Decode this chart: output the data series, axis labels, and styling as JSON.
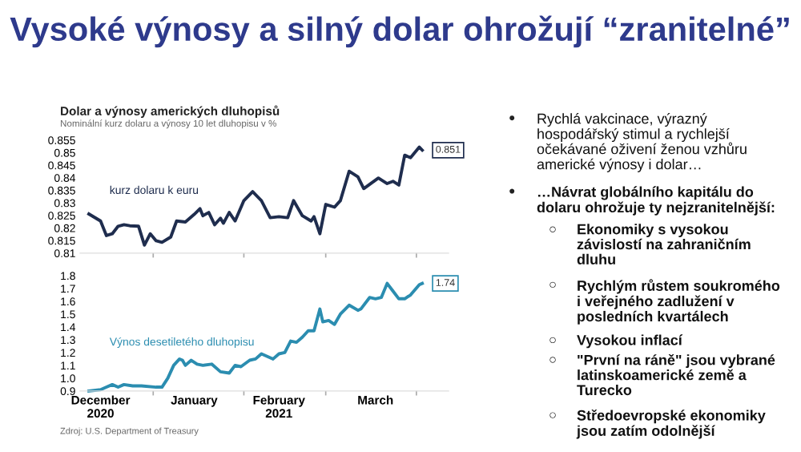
{
  "chart_data": [
    {
      "type": "line",
      "title": "Dolar a výnosy amerických dluhopisů",
      "subtitle": "Nominální kurz dolaru a výnosy 10 let dluhopisu v %",
      "tick_labels": "y",
      "grid": false,
      "legend": false,
      "xlim": [
        "2020-12-07",
        "2021-04-12"
      ],
      "xticks": [
        {
          "value": "2021-01-01",
          "label": null
        },
        {
          "value": "2021-02-01",
          "label": null
        },
        {
          "value": "2021-03-01",
          "label": null
        },
        {
          "value": "2021-04-01",
          "label": null
        }
      ],
      "ylim": [
        0.81,
        0.855
      ],
      "yticks": [
        0.81,
        0.815,
        0.82,
        0.825,
        0.83,
        0.835,
        0.84,
        0.845,
        0.85,
        0.855
      ],
      "series": [
        {
          "name": "kurz dolaru k euru",
          "color": "#1f2d4e",
          "x": [
            "2020-12-10",
            "2020-12-14",
            "2020-12-16",
            "2020-12-18",
            "2020-12-20",
            "2020-12-22",
            "2020-12-24",
            "2020-12-27",
            "2020-12-29",
            "2020-12-31",
            "2021-01-02",
            "2021-01-04",
            "2021-01-07",
            "2021-01-09",
            "2021-01-12",
            "2021-01-15",
            "2021-01-17",
            "2021-01-18",
            "2021-01-20",
            "2021-01-22",
            "2021-01-24",
            "2021-01-25",
            "2021-01-27",
            "2021-01-29",
            "2021-02-01",
            "2021-02-04",
            "2021-02-07",
            "2021-02-10",
            "2021-02-13",
            "2021-02-16",
            "2021-02-18",
            "2021-02-21",
            "2021-02-24",
            "2021-02-25",
            "2021-02-27",
            "2021-03-01",
            "2021-03-04",
            "2021-03-06",
            "2021-03-09",
            "2021-03-12",
            "2021-03-14",
            "2021-03-19",
            "2021-03-22",
            "2021-03-24",
            "2021-03-26",
            "2021-03-28",
            "2021-03-30",
            "2021-04-02",
            "2021-04-03"
          ],
          "values": [
            0.8256,
            0.8228,
            0.817,
            0.8177,
            0.8207,
            0.8213,
            0.8209,
            0.8207,
            0.8132,
            0.8177,
            0.8149,
            0.8143,
            0.8164,
            0.8228,
            0.8224,
            0.8254,
            0.8277,
            0.8249,
            0.8262,
            0.8213,
            0.8239,
            0.8219,
            0.8262,
            0.8228,
            0.8309,
            0.8345,
            0.8309,
            0.8241,
            0.8245,
            0.8241,
            0.8309,
            0.8249,
            0.8228,
            0.8245,
            0.8177,
            0.8294,
            0.8283,
            0.8309,
            0.8426,
            0.8404,
            0.8357,
            0.8399,
            0.8377,
            0.8386,
            0.8371,
            0.849,
            0.848,
            0.8522,
            0.851
          ],
          "value_labels": [
            null,
            null,
            null,
            null,
            null,
            null,
            null,
            null,
            null,
            null,
            null,
            null,
            null,
            null,
            null,
            null,
            null,
            null,
            null,
            null,
            null,
            null,
            null,
            null,
            null,
            null,
            null,
            null,
            null,
            null,
            null,
            null,
            null,
            null,
            null,
            null,
            null,
            null,
            null,
            null,
            null,
            null,
            null,
            null,
            null,
            null,
            null,
            null,
            "0.851"
          ]
        }
      ]
    },
    {
      "type": "line",
      "grid": false,
      "legend": false,
      "xlim": [
        "2020-12-07",
        "2021-04-12"
      ],
      "xticks": [
        {
          "value": "2020-12-14",
          "label": "December\n2020"
        },
        {
          "value": "2021-01-01",
          "label": null
        },
        {
          "value": "2021-01-15",
          "label": "January"
        },
        {
          "value": "2021-02-01",
          "label": null
        },
        {
          "value": "2021-02-13",
          "label": "February\n2021"
        },
        {
          "value": "2021-03-01",
          "label": null
        },
        {
          "value": "2021-03-18",
          "label": "March"
        },
        {
          "value": "2021-04-01",
          "label": null
        }
      ],
      "ylim": [
        0.9,
        1.8
      ],
      "yticks": [
        0.9,
        {
          "value": 1.0,
          "label": "1.0"
        },
        1.1,
        1.2,
        1.3,
        1.4,
        1.5,
        1.6,
        1.7,
        1.8
      ],
      "annotations": [
        "Zdroj: U.S. Department of Treasury"
      ],
      "series": [
        {
          "name": "Výnos desetiletého dluhopisu",
          "color": "#2b8db0",
          "x": [
            "2020-12-10",
            "2020-12-14",
            "2020-12-16",
            "2020-12-18",
            "2020-12-20",
            "2020-12-22",
            "2020-12-25",
            "2020-12-28",
            "2021-01-02",
            "2021-01-04",
            "2021-01-06",
            "2021-01-08",
            "2021-01-10",
            "2021-01-11",
            "2021-01-12",
            "2021-01-14",
            "2021-01-16",
            "2021-01-18",
            "2021-01-21",
            "2021-01-24",
            "2021-01-27",
            "2021-01-29",
            "2021-01-31",
            "2021-02-03",
            "2021-02-05",
            "2021-02-07",
            "2021-02-09",
            "2021-02-11",
            "2021-02-13",
            "2021-02-15",
            "2021-02-17",
            "2021-02-19",
            "2021-02-21",
            "2021-02-23",
            "2021-02-25",
            "2021-02-27",
            "2021-02-28",
            "2021-03-02",
            "2021-03-04",
            "2021-03-06",
            "2021-03-09",
            "2021-03-12",
            "2021-03-13",
            "2021-03-16",
            "2021-03-18",
            "2021-03-20",
            "2021-03-22",
            "2021-03-24",
            "2021-03-26",
            "2021-03-28",
            "2021-03-30",
            "2021-04-02",
            "2021-04-03"
          ],
          "values": [
            0.9,
            0.91,
            0.93,
            0.95,
            0.93,
            0.95,
            0.94,
            0.94,
            0.93,
            0.93,
            1.0,
            1.1,
            1.15,
            1.14,
            1.1,
            1.14,
            1.11,
            1.1,
            1.11,
            1.05,
            1.04,
            1.1,
            1.09,
            1.14,
            1.15,
            1.19,
            1.17,
            1.15,
            1.19,
            1.2,
            1.29,
            1.28,
            1.32,
            1.37,
            1.37,
            1.54,
            1.44,
            1.45,
            1.42,
            1.5,
            1.57,
            1.53,
            1.54,
            1.63,
            1.62,
            1.63,
            1.74,
            1.68,
            1.62,
            1.62,
            1.65,
            1.73,
            1.74
          ],
          "value_labels": [
            null,
            null,
            null,
            null,
            null,
            null,
            null,
            null,
            null,
            null,
            null,
            null,
            null,
            null,
            null,
            null,
            null,
            null,
            null,
            null,
            null,
            null,
            null,
            null,
            null,
            null,
            null,
            null,
            null,
            null,
            null,
            null,
            null,
            null,
            null,
            null,
            null,
            null,
            null,
            null,
            null,
            null,
            null,
            null,
            null,
            null,
            null,
            null,
            null,
            null,
            null,
            null,
            "1.74"
          ]
        }
      ]
    },
    {
      "type": "other",
      "title": "Vysoké výnosy a silný dolar ohrožují “zranitelné”",
      "annotations": [
        "● Rychlá vakcinace, výrazný\nhospodářský stimul a rychlejší\nočekávané oživení ženou vzhůru\namerické výnosy i dolar…",
        "● …Návrat globálního kapitálu do\ndolaru ohrožuje ty nejzranitelnější:",
        "○ Ekonomiky s vysokou\nzávislostí na zahraničním\ndluhu",
        "○ Rychlým růstem soukromého\ni veřejného zadlužení v\nposledních kvartálech",
        "○ Vysokou inflací",
        "○ \"První na ráně\" jsou vybrané\nlatinskoamerické země a\nTurecko",
        "○ Středoevropské ekonomiky\njsou zatím odolnější"
      ]
    }
  ]
}
